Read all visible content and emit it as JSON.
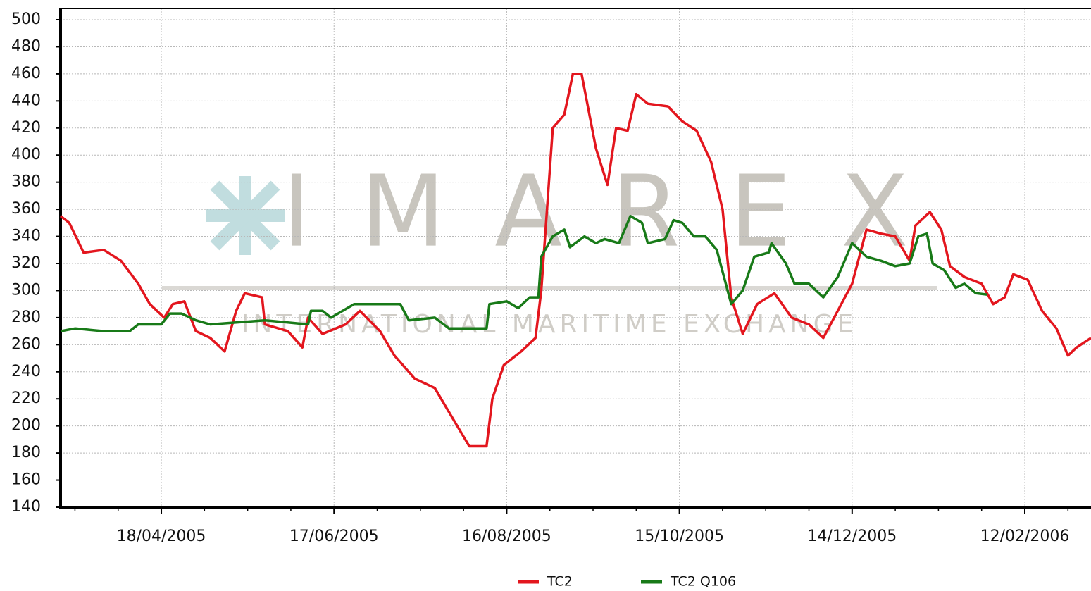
{
  "chart_data": {
    "type": "line",
    "watermark": "IMAREX",
    "watermark_subtitle": "INTERNATIONAL MARITIME EXCHANGE",
    "xlim": [
      "2005-03-14",
      "2006-03-07"
    ],
    "xticks": [
      {
        "value": "2005-04-18",
        "label": "18/04/2005"
      },
      {
        "value": "2005-06-17",
        "label": "17/06/2005"
      },
      {
        "value": "2005-08-16",
        "label": "16/08/2005"
      },
      {
        "value": "2005-10-15",
        "label": "15/10/2005"
      },
      {
        "value": "2005-12-14",
        "label": "14/12/2005"
      },
      {
        "value": "2006-02-12",
        "label": "12/02/2006"
      }
    ],
    "ylim": [
      140,
      500
    ],
    "yticks": [
      140,
      160,
      180,
      200,
      220,
      240,
      260,
      280,
      300,
      320,
      340,
      360,
      380,
      400,
      420,
      440,
      460,
      480,
      500
    ],
    "grid": true,
    "legend": "bottom",
    "series": [
      {
        "name": "TC2",
        "color": "#e3161e",
        "x": [
          "2005-03-14",
          "2005-03-17",
          "2005-03-22",
          "2005-03-29",
          "2005-04-04",
          "2005-04-10",
          "2005-04-14",
          "2005-04-19",
          "2005-04-22",
          "2005-04-26",
          "2005-04-30",
          "2005-05-05",
          "2005-05-10",
          "2005-05-14",
          "2005-05-17",
          "2005-05-23",
          "2005-05-24",
          "2005-06-01",
          "2005-06-06",
          "2005-06-08",
          "2005-06-13",
          "2005-06-21",
          "2005-06-26",
          "2005-07-03",
          "2005-07-08",
          "2005-07-15",
          "2005-07-22",
          "2005-07-27",
          "2005-08-03",
          "2005-08-09",
          "2005-08-11",
          "2005-08-15",
          "2005-08-21",
          "2005-08-26",
          "2005-08-28",
          "2005-09-01",
          "2005-09-05",
          "2005-09-08",
          "2005-09-11",
          "2005-09-16",
          "2005-09-20",
          "2005-09-23",
          "2005-09-27",
          "2005-09-30",
          "2005-10-04",
          "2005-10-11",
          "2005-10-16",
          "2005-10-21",
          "2005-10-26",
          "2005-10-30",
          "2005-11-02",
          "2005-11-06",
          "2005-11-11",
          "2005-11-17",
          "2005-11-23",
          "2005-11-29",
          "2005-12-04",
          "2005-12-09",
          "2005-12-14",
          "2005-12-19",
          "2005-12-24",
          "2005-12-29",
          "2006-01-03",
          "2006-01-05",
          "2006-01-10",
          "2006-01-14",
          "2006-01-17",
          "2006-01-22",
          "2006-01-28",
          "2006-02-01",
          "2006-02-05",
          "2006-02-08",
          "2006-02-13",
          "2006-02-18",
          "2006-02-23",
          "2006-02-27",
          "2006-03-02",
          "2006-03-07"
        ],
        "values": [
          355,
          350,
          328,
          330,
          322,
          305,
          290,
          280,
          290,
          292,
          270,
          265,
          255,
          285,
          298,
          295,
          275,
          270,
          258,
          280,
          268,
          275,
          285,
          270,
          252,
          235,
          228,
          210,
          185,
          185,
          220,
          245,
          255,
          265,
          300,
          420,
          430,
          460,
          460,
          405,
          378,
          420,
          418,
          445,
          438,
          436,
          425,
          418,
          395,
          360,
          295,
          268,
          290,
          298,
          280,
          275,
          265,
          285,
          305,
          345,
          342,
          340,
          322,
          348,
          358,
          345,
          318,
          310,
          305,
          290,
          295,
          312,
          308,
          285,
          272,
          252,
          258,
          265
        ]
      },
      {
        "name": "TC2 Q106",
        "color": "#187a18",
        "x": [
          "2005-03-14",
          "2005-03-19",
          "2005-03-29",
          "2005-04-07",
          "2005-04-10",
          "2005-04-18",
          "2005-04-21",
          "2005-04-25",
          "2005-04-30",
          "2005-05-05",
          "2005-05-24",
          "2005-06-08",
          "2005-06-09",
          "2005-06-13",
          "2005-06-16",
          "2005-06-24",
          "2005-07-10",
          "2005-07-13",
          "2005-07-22",
          "2005-07-27",
          "2005-08-09",
          "2005-08-10",
          "2005-08-16",
          "2005-08-20",
          "2005-08-24",
          "2005-08-27",
          "2005-08-28",
          "2005-09-01",
          "2005-09-05",
          "2005-09-07",
          "2005-09-12",
          "2005-09-16",
          "2005-09-19",
          "2005-09-24",
          "2005-09-28",
          "2005-10-02",
          "2005-10-04",
          "2005-10-10",
          "2005-10-13",
          "2005-10-16",
          "2005-10-20",
          "2005-10-24",
          "2005-10-28",
          "2005-11-02",
          "2005-11-06",
          "2005-11-10",
          "2005-11-15",
          "2005-11-16",
          "2005-11-21",
          "2005-11-24",
          "2005-11-29",
          "2005-12-04",
          "2005-12-09",
          "2005-12-14",
          "2005-12-19",
          "2005-12-24",
          "2005-12-29",
          "2006-01-03",
          "2006-01-06",
          "2006-01-09",
          "2006-01-11",
          "2006-01-15",
          "2006-01-19",
          "2006-01-22",
          "2006-01-26",
          "2006-01-30"
        ],
        "values": [
          270,
          272,
          270,
          270,
          275,
          275,
          283,
          283,
          278,
          275,
          278,
          275,
          285,
          285,
          280,
          290,
          290,
          278,
          280,
          272,
          272,
          290,
          292,
          287,
          295,
          295,
          325,
          340,
          345,
          332,
          340,
          335,
          338,
          335,
          355,
          350,
          335,
          338,
          352,
          350,
          340,
          340,
          330,
          290,
          300,
          325,
          328,
          335,
          320,
          305,
          305,
          295,
          310,
          335,
          325,
          322,
          318,
          320,
          340,
          342,
          320,
          315,
          302,
          305,
          298,
          297
        ]
      }
    ]
  }
}
